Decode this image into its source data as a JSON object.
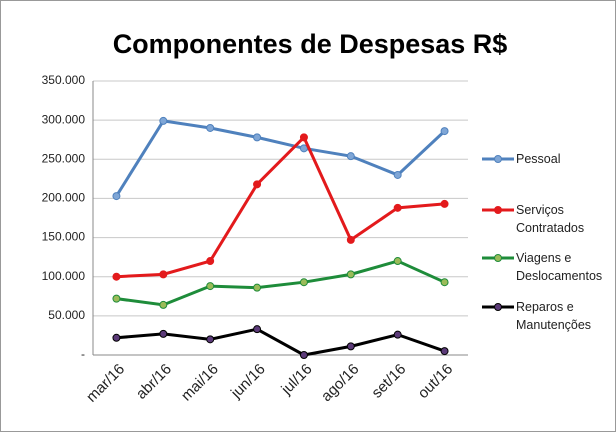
{
  "chart_data": {
    "type": "line",
    "title": "Componentes de Despesas R$",
    "categories": [
      "mar/16",
      "abr/16",
      "mai/16",
      "jun/16",
      "jul/16",
      "ago/16",
      "set/16",
      "out/16"
    ],
    "series": [
      {
        "name": "Pessoal",
        "color": "#4f81bd",
        "values": [
          203000,
          299000,
          290000,
          278000,
          264000,
          254000,
          230000,
          286000
        ]
      },
      {
        "name": "Serviços Contratados",
        "color": "#e31a1c",
        "values": [
          100000,
          103000,
          120000,
          218000,
          278000,
          147000,
          188000,
          193000
        ]
      },
      {
        "name": "Viagens e Deslocamentos",
        "color": "#1e8c3a",
        "values": [
          72000,
          64000,
          88000,
          86000,
          93000,
          103000,
          120000,
          93000
        ]
      },
      {
        "name": "Reparos e Manutenções",
        "color": "#000000",
        "values": [
          22000,
          27000,
          20000,
          33000,
          0,
          11000,
          26000,
          5000
        ]
      }
    ],
    "marker_fills": [
      "#7fa6d6",
      "#e31a1c",
      "#9bbb59",
      "#5b3a78"
    ],
    "ylim": [
      0,
      350000
    ],
    "yticks": [
      {
        "value": 0,
        "label": "-"
      },
      {
        "value": 50000,
        "label": "50.000"
      },
      {
        "value": 100000,
        "label": "100.000"
      },
      {
        "value": 150000,
        "label": "150.000"
      },
      {
        "value": 200000,
        "label": "200.000"
      },
      {
        "value": 250000,
        "label": "250.000"
      },
      {
        "value": 300000,
        "label": "300.000"
      },
      {
        "value": 350000,
        "label": "350.000"
      }
    ],
    "grid": true,
    "legend": "right"
  }
}
